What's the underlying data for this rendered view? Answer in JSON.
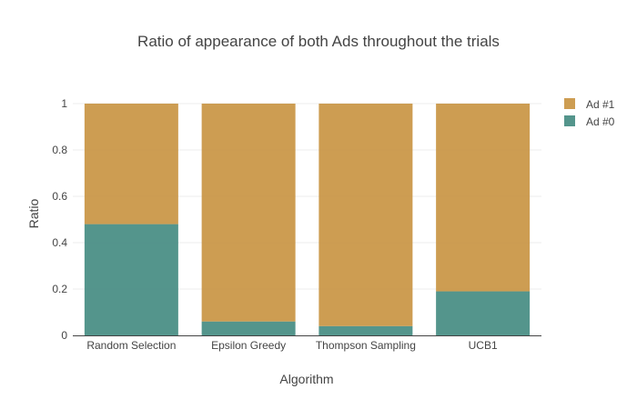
{
  "chart_data": {
    "type": "bar",
    "stacked": true,
    "title": "Ratio of appearance of both Ads throughout the trials",
    "xlabel": "Algorithm",
    "ylabel": "Ratio",
    "categories": [
      "Random Selection",
      "Epsilon Greedy",
      "Thompson Sampling",
      "UCB1"
    ],
    "ylim": [
      0,
      1
    ],
    "yticks": [
      0,
      0.2,
      0.4,
      0.6,
      0.8,
      1
    ],
    "ytick_labels": [
      "0",
      "0.2",
      "0.4",
      "0.6",
      "0.8",
      "1"
    ],
    "grid": true,
    "legend_position": "top-right",
    "series": [
      {
        "name": "Ad #0",
        "color": "#41897f",
        "values": [
          0.48,
          0.06,
          0.04,
          0.19
        ]
      },
      {
        "name": "Ad #1",
        "color": "#c8923f",
        "values": [
          0.52,
          0.94,
          0.96,
          0.81
        ]
      }
    ],
    "legend_order": [
      "Ad #1",
      "Ad #0"
    ]
  }
}
